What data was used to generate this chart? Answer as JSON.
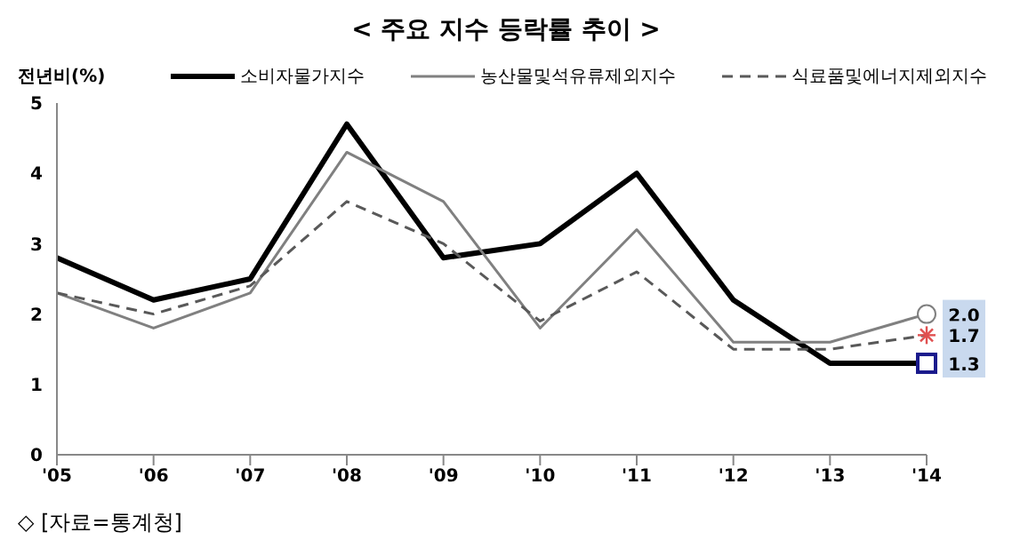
{
  "chart_data": {
    "type": "line",
    "title": "< 주요 지수 등락률 추이 >",
    "ylabel": "전년비(%)",
    "categories": [
      "'05",
      "'06",
      "'07",
      "'08",
      "'09",
      "'10",
      "'11",
      "'12",
      "'13",
      "'14"
    ],
    "series": [
      {
        "name": "소비자물가지수",
        "color": "#000000",
        "values": [
          2.8,
          2.2,
          2.5,
          4.7,
          2.8,
          3.0,
          4.0,
          2.2,
          1.3,
          1.3
        ],
        "line_style": "solid",
        "value_labels": [
          null,
          null,
          null,
          null,
          null,
          null,
          null,
          null,
          null,
          "1.3"
        ]
      },
      {
        "name": "농산물및석유류제외지수",
        "color": "#808080",
        "values": [
          2.3,
          1.8,
          2.3,
          4.3,
          3.6,
          1.8,
          3.2,
          1.6,
          1.6,
          2.0
        ],
        "line_style": "solid",
        "value_labels": [
          null,
          null,
          null,
          null,
          null,
          null,
          null,
          null,
          null,
          "2.0"
        ]
      },
      {
        "name": "식료품및에너지제외지수",
        "color": "#595959",
        "values": [
          2.3,
          2.0,
          2.4,
          3.6,
          3.0,
          1.9,
          2.6,
          1.5,
          1.5,
          1.7
        ],
        "line_style": "dashed",
        "value_labels": [
          null,
          null,
          null,
          null,
          null,
          null,
          null,
          null,
          null,
          "1.7"
        ]
      }
    ],
    "ylim": [
      0,
      5
    ],
    "yticks": [
      0,
      1,
      2,
      3,
      4,
      5
    ],
    "grid": false,
    "legend": "top",
    "annotations": [
      "◇ [자료=통계청]"
    ]
  }
}
